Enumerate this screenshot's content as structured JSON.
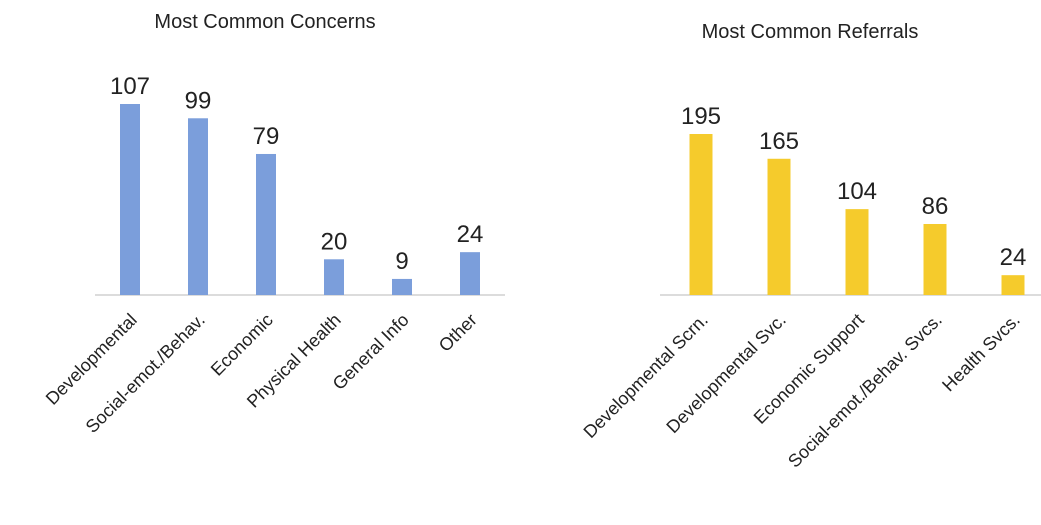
{
  "chart_data": [
    {
      "type": "bar",
      "title": "Most Common Concerns",
      "categories": [
        "Developmental",
        "Social-emot./Behav.",
        "Economic",
        "Physical Health",
        "General Info",
        "Other"
      ],
      "values": [
        107,
        99,
        79,
        20,
        9,
        24
      ],
      "color": "#7B9EDB",
      "ylim": [
        0,
        107
      ],
      "grid": false,
      "legend": "none",
      "xlabel": "",
      "ylabel": ""
    },
    {
      "type": "bar",
      "title": "Most Common Referrals",
      "categories": [
        "Developmental Scrn.",
        "Developmental Svc.",
        "Economic Support",
        "Social-emot./Behav. Svcs.",
        "Health Svcs."
      ],
      "values": [
        195,
        165,
        104,
        86,
        24
      ],
      "color": "#F5CB2C",
      "ylim": [
        0,
        195
      ],
      "grid": false,
      "legend": "none",
      "xlabel": "",
      "ylabel": ""
    }
  ]
}
